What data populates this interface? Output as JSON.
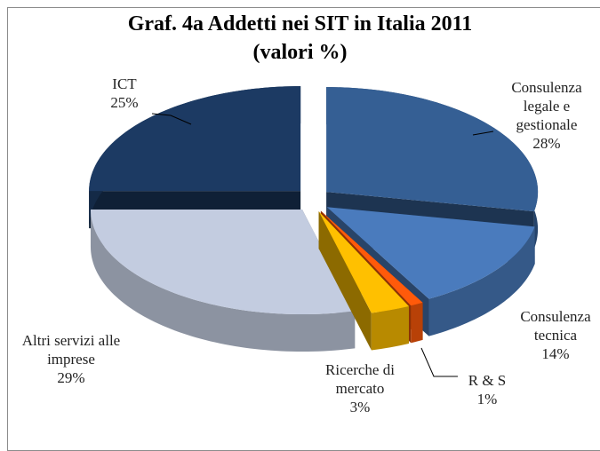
{
  "chart_data": {
    "type": "pie",
    "title": "Graf.  4a Addetti nei SIT in Italia 2011",
    "subtitle": "(valori %)",
    "categories": [
      "Consulenza legale e gestionale",
      "Consulenza tecnica",
      "R & S",
      "Ricerche di mercato",
      "Altri servizi alle imprese",
      "ICT"
    ],
    "values": [
      28,
      14,
      1,
      3,
      29,
      25
    ],
    "value_labels": [
      "28%",
      "14%",
      "1%",
      "3%",
      "29%",
      "25%"
    ],
    "colors": [
      "#355f94",
      "#4a7bbd",
      "#ff5a0a",
      "#ffc000",
      "#c3cce0",
      "#1c3a63"
    ]
  }
}
